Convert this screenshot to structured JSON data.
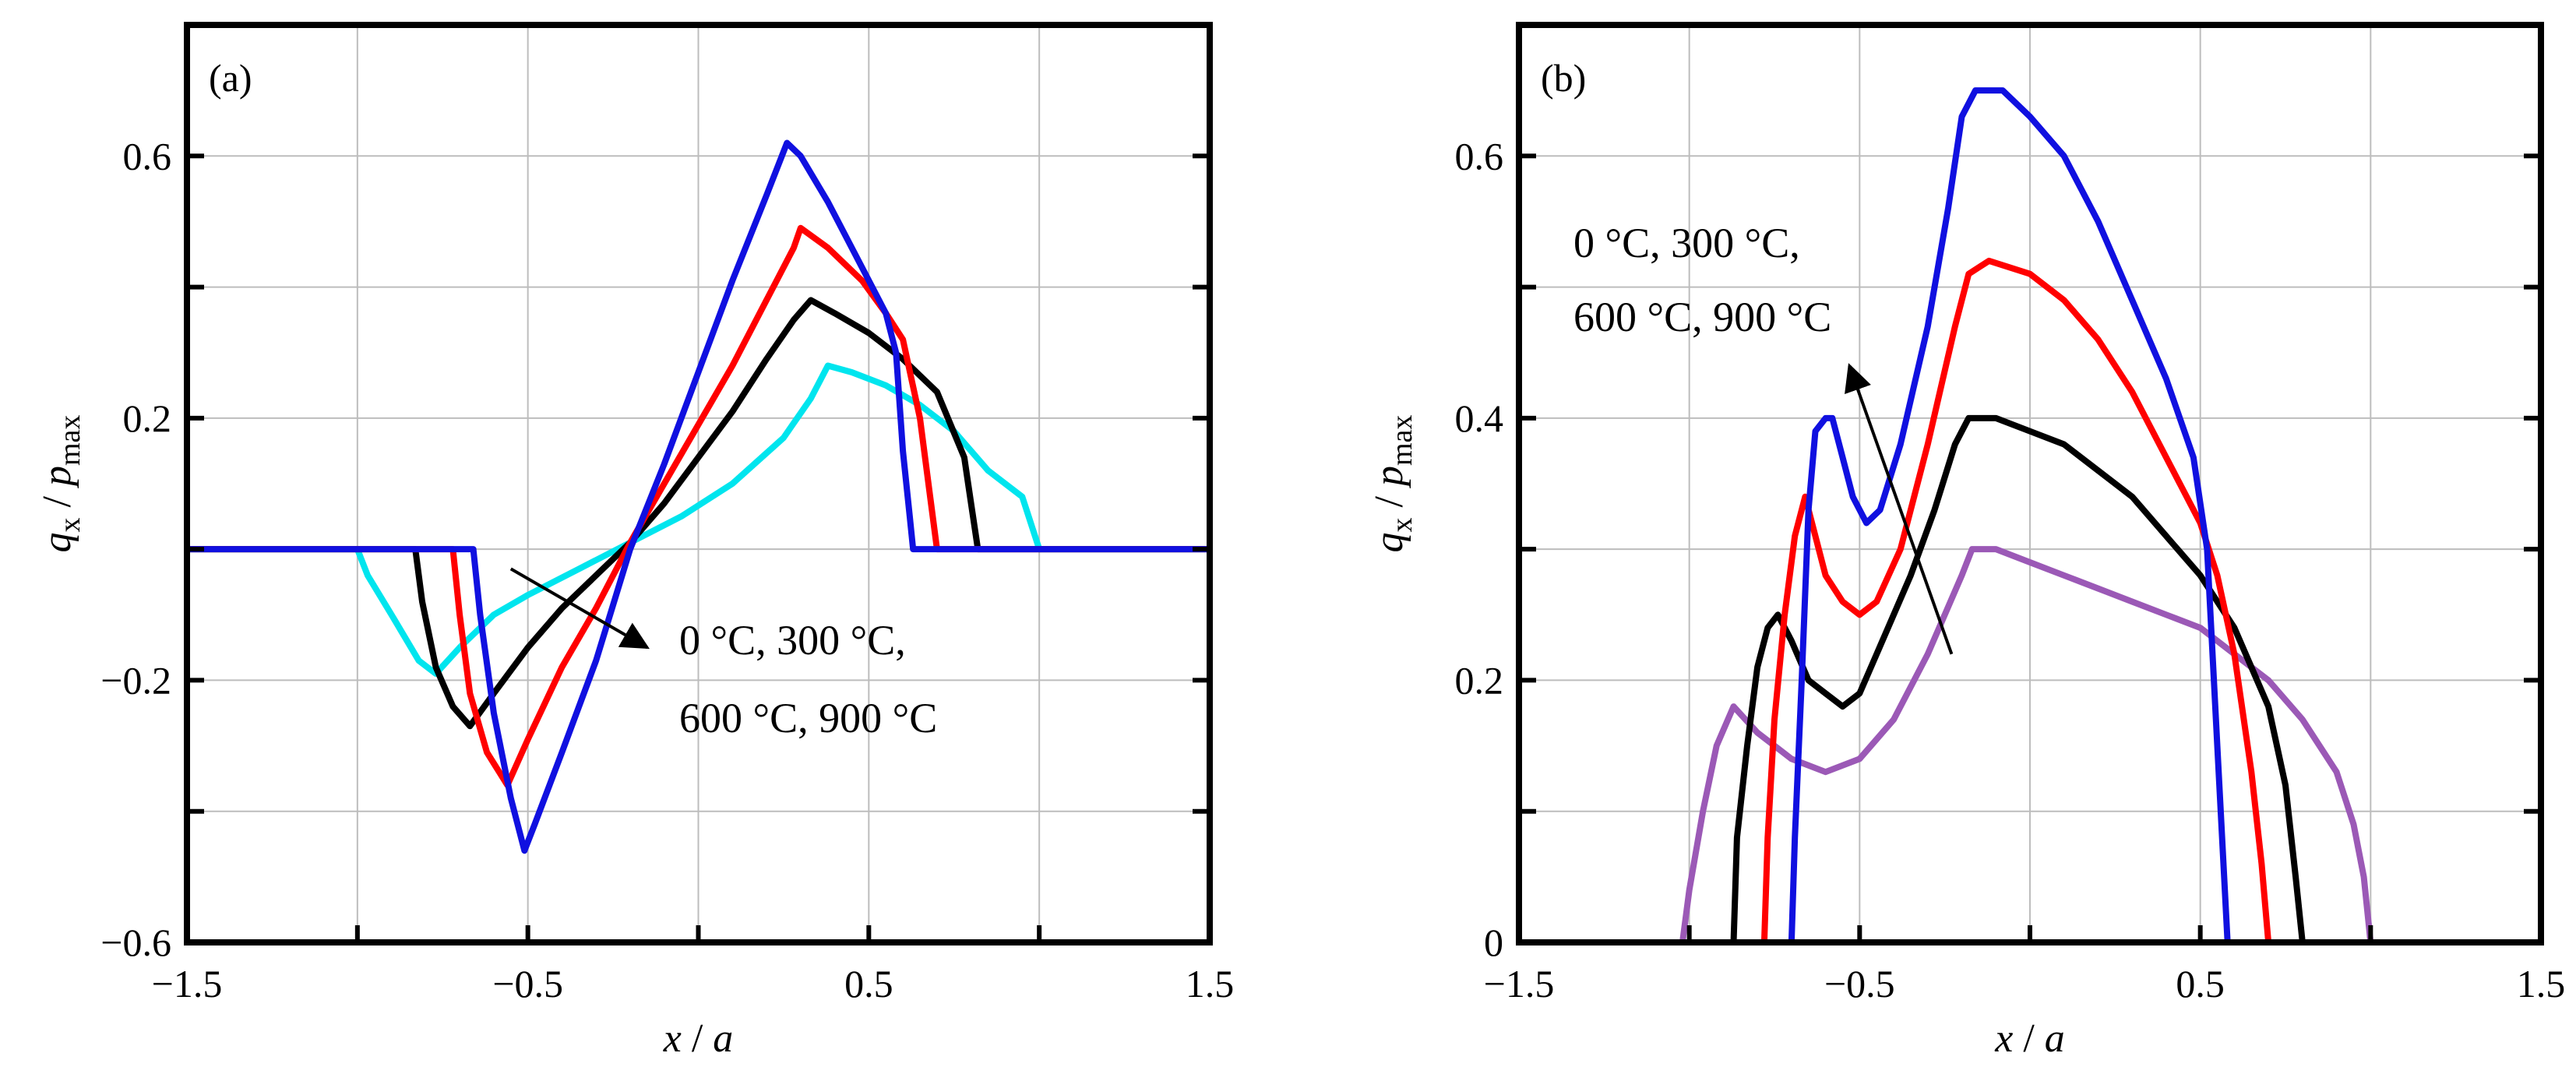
{
  "colors": {
    "background": "#ffffff",
    "frame": "#000000",
    "grid": "#bdbdbd",
    "cyan": "#00e5ee",
    "black": "#000000",
    "red": "#ff0000",
    "blue": "#1010e0",
    "purple": "#9b59b6"
  },
  "chart_data": [
    {
      "type": "line",
      "panel_label": "(a)",
      "xlabel": {
        "main": "x",
        "sep": " / ",
        "den": "a"
      },
      "ylabel": {
        "num": "q",
        "num_sub": "x",
        "sep": " / ",
        "den": "p",
        "den_sub": "max"
      },
      "xlim": [
        -1.5,
        1.5
      ],
      "ylim": [
        -0.6,
        0.8
      ],
      "grid": true,
      "xticks": [
        -1.5,
        -0.5,
        0.5,
        1.5
      ],
      "xtick_labels": [
        "−1.5",
        "−0.5",
        "0.5",
        "1.5"
      ],
      "yticks": [
        -0.6,
        -0.2,
        0.2,
        0.6
      ],
      "ytick_labels": [
        "−0.6",
        "−0.2",
        "0.2",
        "0.6"
      ],
      "annotation": {
        "line1": "0 °C, 300 °C,",
        "line2": "600 °C, 900 °C",
        "arrow_from": [
          -0.55,
          -0.03
        ],
        "arrow_to": [
          -0.15,
          -0.15
        ]
      },
      "series": [
        {
          "color_key": "cyan",
          "points": [
            [
              -1.5,
              0
            ],
            [
              -1.0,
              0
            ],
            [
              -0.97,
              -0.04
            ],
            [
              -0.9,
              -0.1
            ],
            [
              -0.82,
              -0.17
            ],
            [
              -0.77,
              -0.19
            ],
            [
              -0.7,
              -0.15
            ],
            [
              -0.6,
              -0.1
            ],
            [
              -0.5,
              -0.07
            ],
            [
              -0.35,
              -0.03
            ],
            [
              -0.2,
              0.01
            ],
            [
              -0.05,
              0.05
            ],
            [
              0.1,
              0.1
            ],
            [
              0.25,
              0.17
            ],
            [
              0.33,
              0.23
            ],
            [
              0.38,
              0.28
            ],
            [
              0.45,
              0.27
            ],
            [
              0.55,
              0.25
            ],
            [
              0.65,
              0.22
            ],
            [
              0.75,
              0.18
            ],
            [
              0.85,
              0.12
            ],
            [
              0.95,
              0.08
            ],
            [
              1.0,
              0
            ],
            [
              1.5,
              0
            ]
          ]
        },
        {
          "color_key": "black",
          "points": [
            [
              -1.5,
              0
            ],
            [
              -0.83,
              0
            ],
            [
              -0.81,
              -0.08
            ],
            [
              -0.77,
              -0.18
            ],
            [
              -0.72,
              -0.24
            ],
            [
              -0.67,
              -0.27
            ],
            [
              -0.6,
              -0.22
            ],
            [
              -0.5,
              -0.15
            ],
            [
              -0.4,
              -0.09
            ],
            [
              -0.3,
              -0.04
            ],
            [
              -0.2,
              0.01
            ],
            [
              -0.1,
              0.07
            ],
            [
              0.0,
              0.14
            ],
            [
              0.1,
              0.21
            ],
            [
              0.2,
              0.29
            ],
            [
              0.28,
              0.35
            ],
            [
              0.33,
              0.38
            ],
            [
              0.4,
              0.36
            ],
            [
              0.5,
              0.33
            ],
            [
              0.6,
              0.29
            ],
            [
              0.7,
              0.24
            ],
            [
              0.78,
              0.14
            ],
            [
              0.8,
              0.07
            ],
            [
              0.82,
              0
            ],
            [
              1.5,
              0
            ]
          ]
        },
        {
          "color_key": "red",
          "points": [
            [
              -1.5,
              0
            ],
            [
              -0.72,
              0
            ],
            [
              -0.7,
              -0.1
            ],
            [
              -0.67,
              -0.22
            ],
            [
              -0.62,
              -0.31
            ],
            [
              -0.56,
              -0.36
            ],
            [
              -0.5,
              -0.29
            ],
            [
              -0.4,
              -0.18
            ],
            [
              -0.3,
              -0.09
            ],
            [
              -0.2,
              0.01
            ],
            [
              -0.1,
              0.1
            ],
            [
              0.0,
              0.19
            ],
            [
              0.1,
              0.28
            ],
            [
              0.2,
              0.38
            ],
            [
              0.28,
              0.46
            ],
            [
              0.3,
              0.49
            ],
            [
              0.38,
              0.46
            ],
            [
              0.48,
              0.41
            ],
            [
              0.55,
              0.36
            ],
            [
              0.6,
              0.32
            ],
            [
              0.65,
              0.2
            ],
            [
              0.68,
              0.08
            ],
            [
              0.7,
              0
            ],
            [
              1.5,
              0
            ]
          ]
        },
        {
          "color_key": "blue",
          "points": [
            [
              -1.5,
              0
            ],
            [
              -0.66,
              0
            ],
            [
              -0.64,
              -0.1
            ],
            [
              -0.6,
              -0.25
            ],
            [
              -0.55,
              -0.38
            ],
            [
              -0.51,
              -0.46
            ],
            [
              -0.48,
              -0.42
            ],
            [
              -0.4,
              -0.31
            ],
            [
              -0.3,
              -0.17
            ],
            [
              -0.2,
              0.0
            ],
            [
              -0.1,
              0.13
            ],
            [
              0.0,
              0.27
            ],
            [
              0.1,
              0.41
            ],
            [
              0.2,
              0.54
            ],
            [
              0.26,
              0.62
            ],
            [
              0.3,
              0.6
            ],
            [
              0.38,
              0.53
            ],
            [
              0.48,
              0.43
            ],
            [
              0.55,
              0.36
            ],
            [
              0.58,
              0.3
            ],
            [
              0.6,
              0.15
            ],
            [
              0.62,
              0.05
            ],
            [
              0.63,
              0
            ],
            [
              1.5,
              0
            ]
          ]
        }
      ]
    },
    {
      "type": "line",
      "panel_label": "(b)",
      "xlabel": {
        "main": "x",
        "sep": " / ",
        "den": "a"
      },
      "ylabel": {
        "num": "q",
        "num_sub": "x",
        "sep": " / ",
        "den": "p",
        "den_sub": "max"
      },
      "xlim": [
        -1.5,
        1.5
      ],
      "ylim": [
        0,
        0.7
      ],
      "grid": true,
      "xticks": [
        -1.5,
        -0.5,
        0.5,
        1.5
      ],
      "xtick_labels": [
        "−1.5",
        "−0.5",
        "0.5",
        "1.5"
      ],
      "yticks": [
        0,
        0.2,
        0.4,
        0.6
      ],
      "ytick_labels": [
        "0",
        "0.2",
        "0.4",
        "0.6"
      ],
      "annotation": {
        "line1": "0 °C, 300 °C,",
        "line2": "600 °C, 900 °C",
        "arrow_from": [
          -0.23,
          0.22
        ],
        "arrow_to": [
          -0.53,
          0.44
        ]
      },
      "series": [
        {
          "color_key": "purple",
          "points": [
            [
              -1.5,
              0
            ],
            [
              -1.02,
              0
            ],
            [
              -1.0,
              0.04
            ],
            [
              -0.96,
              0.1
            ],
            [
              -0.92,
              0.15
            ],
            [
              -0.87,
              0.18
            ],
            [
              -0.8,
              0.16
            ],
            [
              -0.7,
              0.14
            ],
            [
              -0.6,
              0.13
            ],
            [
              -0.5,
              0.14
            ],
            [
              -0.4,
              0.17
            ],
            [
              -0.3,
              0.22
            ],
            [
              -0.2,
              0.28
            ],
            [
              -0.17,
              0.3
            ],
            [
              -0.1,
              0.3
            ],
            [
              0.0,
              0.29
            ],
            [
              0.1,
              0.28
            ],
            [
              0.2,
              0.27
            ],
            [
              0.3,
              0.26
            ],
            [
              0.4,
              0.25
            ],
            [
              0.5,
              0.24
            ],
            [
              0.6,
              0.22
            ],
            [
              0.7,
              0.2
            ],
            [
              0.8,
              0.17
            ],
            [
              0.9,
              0.13
            ],
            [
              0.95,
              0.09
            ],
            [
              0.98,
              0.05
            ],
            [
              1.0,
              0
            ],
            [
              1.5,
              0
            ]
          ]
        },
        {
          "color_key": "black",
          "points": [
            [
              -1.5,
              0
            ],
            [
              -0.87,
              0
            ],
            [
              -0.86,
              0.08
            ],
            [
              -0.83,
              0.15
            ],
            [
              -0.8,
              0.21
            ],
            [
              -0.77,
              0.24
            ],
            [
              -0.74,
              0.25
            ],
            [
              -0.7,
              0.23
            ],
            [
              -0.65,
              0.2
            ],
            [
              -0.6,
              0.19
            ],
            [
              -0.55,
              0.18
            ],
            [
              -0.5,
              0.19
            ],
            [
              -0.45,
              0.22
            ],
            [
              -0.35,
              0.28
            ],
            [
              -0.28,
              0.33
            ],
            [
              -0.22,
              0.38
            ],
            [
              -0.18,
              0.4
            ],
            [
              -0.1,
              0.4
            ],
            [
              0.0,
              0.39
            ],
            [
              0.1,
              0.38
            ],
            [
              0.2,
              0.36
            ],
            [
              0.3,
              0.34
            ],
            [
              0.4,
              0.31
            ],
            [
              0.5,
              0.28
            ],
            [
              0.6,
              0.24
            ],
            [
              0.7,
              0.18
            ],
            [
              0.75,
              0.12
            ],
            [
              0.78,
              0.05
            ],
            [
              0.8,
              0
            ],
            [
              1.5,
              0
            ]
          ]
        },
        {
          "color_key": "red",
          "points": [
            [
              -1.5,
              0
            ],
            [
              -0.78,
              0
            ],
            [
              -0.77,
              0.08
            ],
            [
              -0.75,
              0.17
            ],
            [
              -0.72,
              0.25
            ],
            [
              -0.69,
              0.31
            ],
            [
              -0.66,
              0.34
            ],
            [
              -0.63,
              0.31
            ],
            [
              -0.6,
              0.28
            ],
            [
              -0.55,
              0.26
            ],
            [
              -0.5,
              0.25
            ],
            [
              -0.45,
              0.26
            ],
            [
              -0.38,
              0.3
            ],
            [
              -0.3,
              0.38
            ],
            [
              -0.22,
              0.47
            ],
            [
              -0.18,
              0.51
            ],
            [
              -0.12,
              0.52
            ],
            [
              0.0,
              0.51
            ],
            [
              0.1,
              0.49
            ],
            [
              0.2,
              0.46
            ],
            [
              0.3,
              0.42
            ],
            [
              0.4,
              0.37
            ],
            [
              0.5,
              0.32
            ],
            [
              0.55,
              0.28
            ],
            [
              0.6,
              0.22
            ],
            [
              0.65,
              0.13
            ],
            [
              0.68,
              0.06
            ],
            [
              0.7,
              0
            ],
            [
              1.5,
              0
            ]
          ]
        },
        {
          "color_key": "blue",
          "points": [
            [
              -1.5,
              0
            ],
            [
              -0.7,
              0
            ],
            [
              -0.69,
              0.08
            ],
            [
              -0.67,
              0.2
            ],
            [
              -0.65,
              0.33
            ],
            [
              -0.63,
              0.39
            ],
            [
              -0.6,
              0.4
            ],
            [
              -0.58,
              0.4
            ],
            [
              -0.55,
              0.37
            ],
            [
              -0.52,
              0.34
            ],
            [
              -0.48,
              0.32
            ],
            [
              -0.44,
              0.33
            ],
            [
              -0.38,
              0.38
            ],
            [
              -0.3,
              0.47
            ],
            [
              -0.24,
              0.56
            ],
            [
              -0.2,
              0.63
            ],
            [
              -0.16,
              0.65
            ],
            [
              -0.08,
              0.65
            ],
            [
              0.0,
              0.63
            ],
            [
              0.1,
              0.6
            ],
            [
              0.2,
              0.55
            ],
            [
              0.3,
              0.49
            ],
            [
              0.4,
              0.43
            ],
            [
              0.48,
              0.37
            ],
            [
              0.52,
              0.3
            ],
            [
              0.55,
              0.15
            ],
            [
              0.57,
              0.05
            ],
            [
              0.58,
              0
            ],
            [
              1.5,
              0
            ]
          ]
        }
      ]
    }
  ]
}
